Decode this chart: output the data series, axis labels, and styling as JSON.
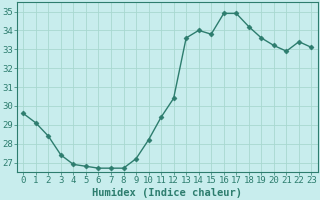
{
  "x": [
    0,
    1,
    2,
    3,
    4,
    5,
    6,
    7,
    8,
    9,
    10,
    11,
    12,
    13,
    14,
    15,
    16,
    17,
    18,
    19,
    20,
    21,
    22,
    23
  ],
  "y": [
    29.6,
    29.1,
    28.4,
    27.4,
    26.9,
    26.8,
    26.7,
    26.7,
    26.7,
    27.2,
    28.2,
    29.4,
    30.4,
    33.6,
    34.0,
    33.8,
    34.9,
    34.9,
    34.2,
    33.6,
    33.2,
    32.9,
    33.4,
    33.1
  ],
  "line_color": "#2d7d6e",
  "marker": "D",
  "markersize": 2.5,
  "linewidth": 1.0,
  "bg_color": "#c8eded",
  "grid_color": "#a8d8d0",
  "xlabel": "Humidex (Indice chaleur)",
  "xlabel_fontsize": 7.5,
  "tick_fontsize": 6.5,
  "ylim": [
    26.5,
    35.5
  ],
  "xlim": [
    -0.5,
    23.5
  ],
  "yticks": [
    27,
    28,
    29,
    30,
    31,
    32,
    33,
    34,
    35
  ],
  "xticks": [
    0,
    1,
    2,
    3,
    4,
    5,
    6,
    7,
    8,
    9,
    10,
    11,
    12,
    13,
    14,
    15,
    16,
    17,
    18,
    19,
    20,
    21,
    22,
    23
  ],
  "xtick_labels": [
    "0",
    "1",
    "2",
    "3",
    "4",
    "5",
    "6",
    "7",
    "8",
    "9",
    "10",
    "11",
    "12",
    "13",
    "14",
    "15",
    "16",
    "17",
    "18",
    "19",
    "20",
    "21",
    "22",
    "23"
  ]
}
